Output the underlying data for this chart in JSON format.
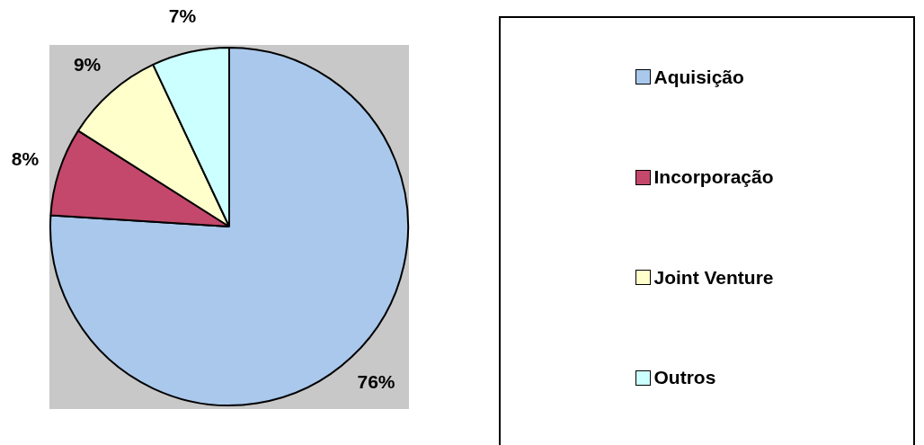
{
  "chart_data": {
    "type": "pie",
    "categories": [
      "Aquisição",
      "Incorporação",
      "Joint Venture",
      "Outros"
    ],
    "values": [
      76,
      8,
      9,
      7
    ],
    "colors": [
      "#a9c8ec",
      "#c4486c",
      "#ffffcc",
      "#ccffff"
    ],
    "value_labels": [
      "76%",
      "8%",
      "9%",
      "7%"
    ],
    "legend": "right"
  }
}
